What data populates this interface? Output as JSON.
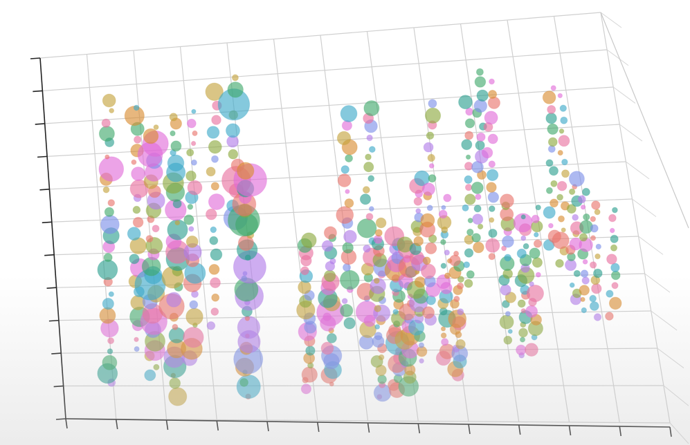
{
  "chart_data": {
    "type": "scatter",
    "dimensions": 3,
    "encoding": "bubble",
    "grid": true,
    "legend": "none",
    "title": "",
    "xlabel": "",
    "ylabel": "",
    "zlabel": "",
    "series_palette": [
      "#e8736a",
      "#d98a2e",
      "#c4a23a",
      "#8aa83c",
      "#3fa86a",
      "#2a9e8e",
      "#3aa8c8",
      "#7a8ee8",
      "#b07ae8",
      "#e06ad8",
      "#e8709e"
    ],
    "columns": [
      {
        "x": 0.04,
        "y": 0.05,
        "z_min": 0.08,
        "z_max": 0.9,
        "points": 26,
        "max_size": 18
      },
      {
        "x": 0.09,
        "y": 0.04,
        "z_min": 0.18,
        "z_max": 0.88,
        "points": 22,
        "max_size": 14
      },
      {
        "x": 0.12,
        "y": 0.08,
        "z_min": 0.1,
        "z_max": 0.82,
        "points": 28,
        "max_size": 24
      },
      {
        "x": 0.16,
        "y": 0.06,
        "z_min": 0.05,
        "z_max": 0.85,
        "points": 30,
        "max_size": 20
      },
      {
        "x": 0.19,
        "y": 0.1,
        "z_min": 0.15,
        "z_max": 0.86,
        "points": 24,
        "max_size": 18
      },
      {
        "x": 0.23,
        "y": 0.07,
        "z_min": 0.25,
        "z_max": 0.92,
        "points": 18,
        "max_size": 16
      },
      {
        "x": 0.27,
        "y": 0.12,
        "z_min": 0.55,
        "z_max": 0.95,
        "points": 12,
        "max_size": 22
      },
      {
        "x": 0.29,
        "y": 0.3,
        "z_min": 0.02,
        "z_max": 0.66,
        "points": 30,
        "max_size": 26
      },
      {
        "x": 0.4,
        "y": 0.4,
        "z_min": 0.03,
        "z_max": 0.46,
        "points": 20,
        "max_size": 14
      },
      {
        "x": 0.44,
        "y": 0.38,
        "z_min": 0.05,
        "z_max": 0.48,
        "points": 22,
        "max_size": 18
      },
      {
        "x": 0.47,
        "y": 0.55,
        "z_min": 0.2,
        "z_max": 0.8,
        "points": 20,
        "max_size": 14
      },
      {
        "x": 0.51,
        "y": 0.56,
        "z_min": 0.15,
        "z_max": 0.82,
        "points": 24,
        "max_size": 16
      },
      {
        "x": 0.53,
        "y": 0.42,
        "z_min": 0.0,
        "z_max": 0.5,
        "points": 26,
        "max_size": 18
      },
      {
        "x": 0.56,
        "y": 0.44,
        "z_min": 0.02,
        "z_max": 0.46,
        "points": 24,
        "max_size": 16
      },
      {
        "x": 0.58,
        "y": 0.46,
        "z_min": 0.03,
        "z_max": 0.44,
        "points": 20,
        "max_size": 14
      },
      {
        "x": 0.6,
        "y": 0.52,
        "z_min": 0.1,
        "z_max": 0.62,
        "points": 24,
        "max_size": 14
      },
      {
        "x": 0.62,
        "y": 0.6,
        "z_min": 0.2,
        "z_max": 0.82,
        "points": 22,
        "max_size": 12
      },
      {
        "x": 0.65,
        "y": 0.55,
        "z_min": 0.1,
        "z_max": 0.56,
        "points": 22,
        "max_size": 12
      },
      {
        "x": 0.67,
        "y": 0.58,
        "z_min": 0.05,
        "z_max": 0.4,
        "points": 20,
        "max_size": 12
      },
      {
        "x": 0.69,
        "y": 0.66,
        "z_min": 0.3,
        "z_max": 0.82,
        "points": 18,
        "max_size": 10
      },
      {
        "x": 0.71,
        "y": 0.7,
        "z_min": 0.4,
        "z_max": 0.9,
        "points": 18,
        "max_size": 10
      },
      {
        "x": 0.73,
        "y": 0.68,
        "z_min": 0.38,
        "z_max": 0.88,
        "points": 16,
        "max_size": 10
      },
      {
        "x": 0.76,
        "y": 0.6,
        "z_min": 0.15,
        "z_max": 0.55,
        "points": 18,
        "max_size": 12
      },
      {
        "x": 0.79,
        "y": 0.62,
        "z_min": 0.1,
        "z_max": 0.5,
        "points": 20,
        "max_size": 12
      },
      {
        "x": 0.81,
        "y": 0.64,
        "z_min": 0.12,
        "z_max": 0.52,
        "points": 16,
        "max_size": 10
      },
      {
        "x": 0.84,
        "y": 0.78,
        "z_min": 0.4,
        "z_max": 0.85,
        "points": 16,
        "max_size": 10
      },
      {
        "x": 0.86,
        "y": 0.8,
        "z_min": 0.35,
        "z_max": 0.82,
        "points": 16,
        "max_size": 10
      },
      {
        "x": 0.88,
        "y": 0.72,
        "z_min": 0.25,
        "z_max": 0.6,
        "points": 16,
        "max_size": 10
      },
      {
        "x": 0.9,
        "y": 0.74,
        "z_min": 0.22,
        "z_max": 0.56,
        "points": 14,
        "max_size": 8
      },
      {
        "x": 0.92,
        "y": 0.76,
        "z_min": 0.2,
        "z_max": 0.52,
        "points": 14,
        "max_size": 8
      },
      {
        "x": 0.95,
        "y": 0.78,
        "z_min": 0.2,
        "z_max": 0.5,
        "points": 12,
        "max_size": 8
      }
    ]
  }
}
